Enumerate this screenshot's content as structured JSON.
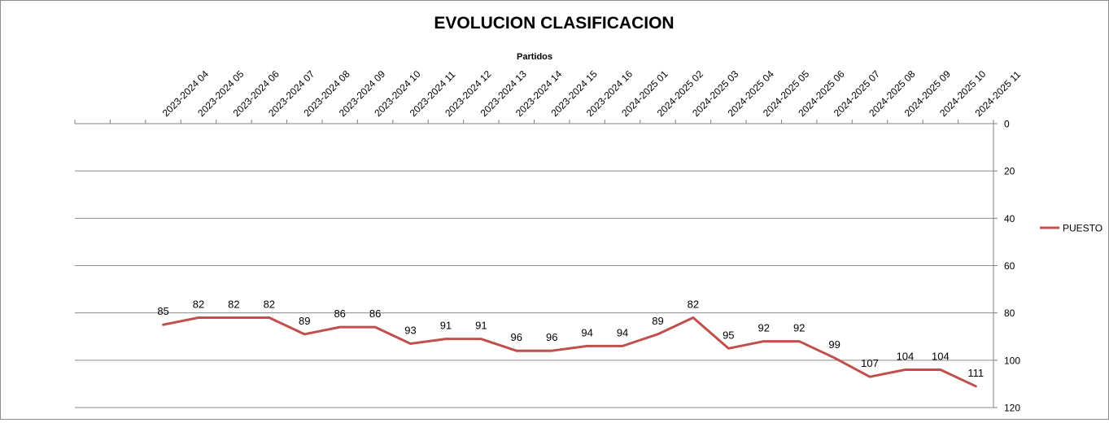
{
  "chart_data": {
    "type": "line",
    "title": "EVOLUCION CLASIFICACION",
    "xlabel": "Partidos",
    "ylabel": "",
    "x_axis_position": "top",
    "y_axis_position": "right",
    "y_reversed": true,
    "ylim": [
      0,
      120
    ],
    "yticks": [
      0,
      20,
      40,
      60,
      80,
      100,
      120
    ],
    "grid": "horizontal",
    "legend_position": "right",
    "categories": [
      "",
      "",
      "2023-2024 04",
      "2023-2024 05",
      "2023-2024 06",
      "2023-2024 07",
      "2023-2024 08",
      "2023-2024 09",
      "2023-2024 10",
      "2023-2024 11",
      "2023-2024 12",
      "2023-2024 13",
      "2023-2024 14",
      "2023-2024 15",
      "2023-2024 16",
      "2024-2025 01",
      "2024-2025 02",
      "2024-2025 03",
      "2024-2025 04",
      "2024-2025 05",
      "2024-2025 06",
      "2024-2025 07",
      "2024-2025 08",
      "2024-2025 09",
      "2024-2025 10",
      "2024-2025 11"
    ],
    "series": [
      {
        "name": "PUESTO",
        "color": "#c0504d",
        "values": [
          null,
          null,
          85,
          82,
          82,
          82,
          89,
          86,
          86,
          93,
          91,
          91,
          96,
          96,
          94,
          94,
          89,
          82,
          95,
          92,
          92,
          99,
          107,
          104,
          104,
          111
        ]
      }
    ]
  }
}
